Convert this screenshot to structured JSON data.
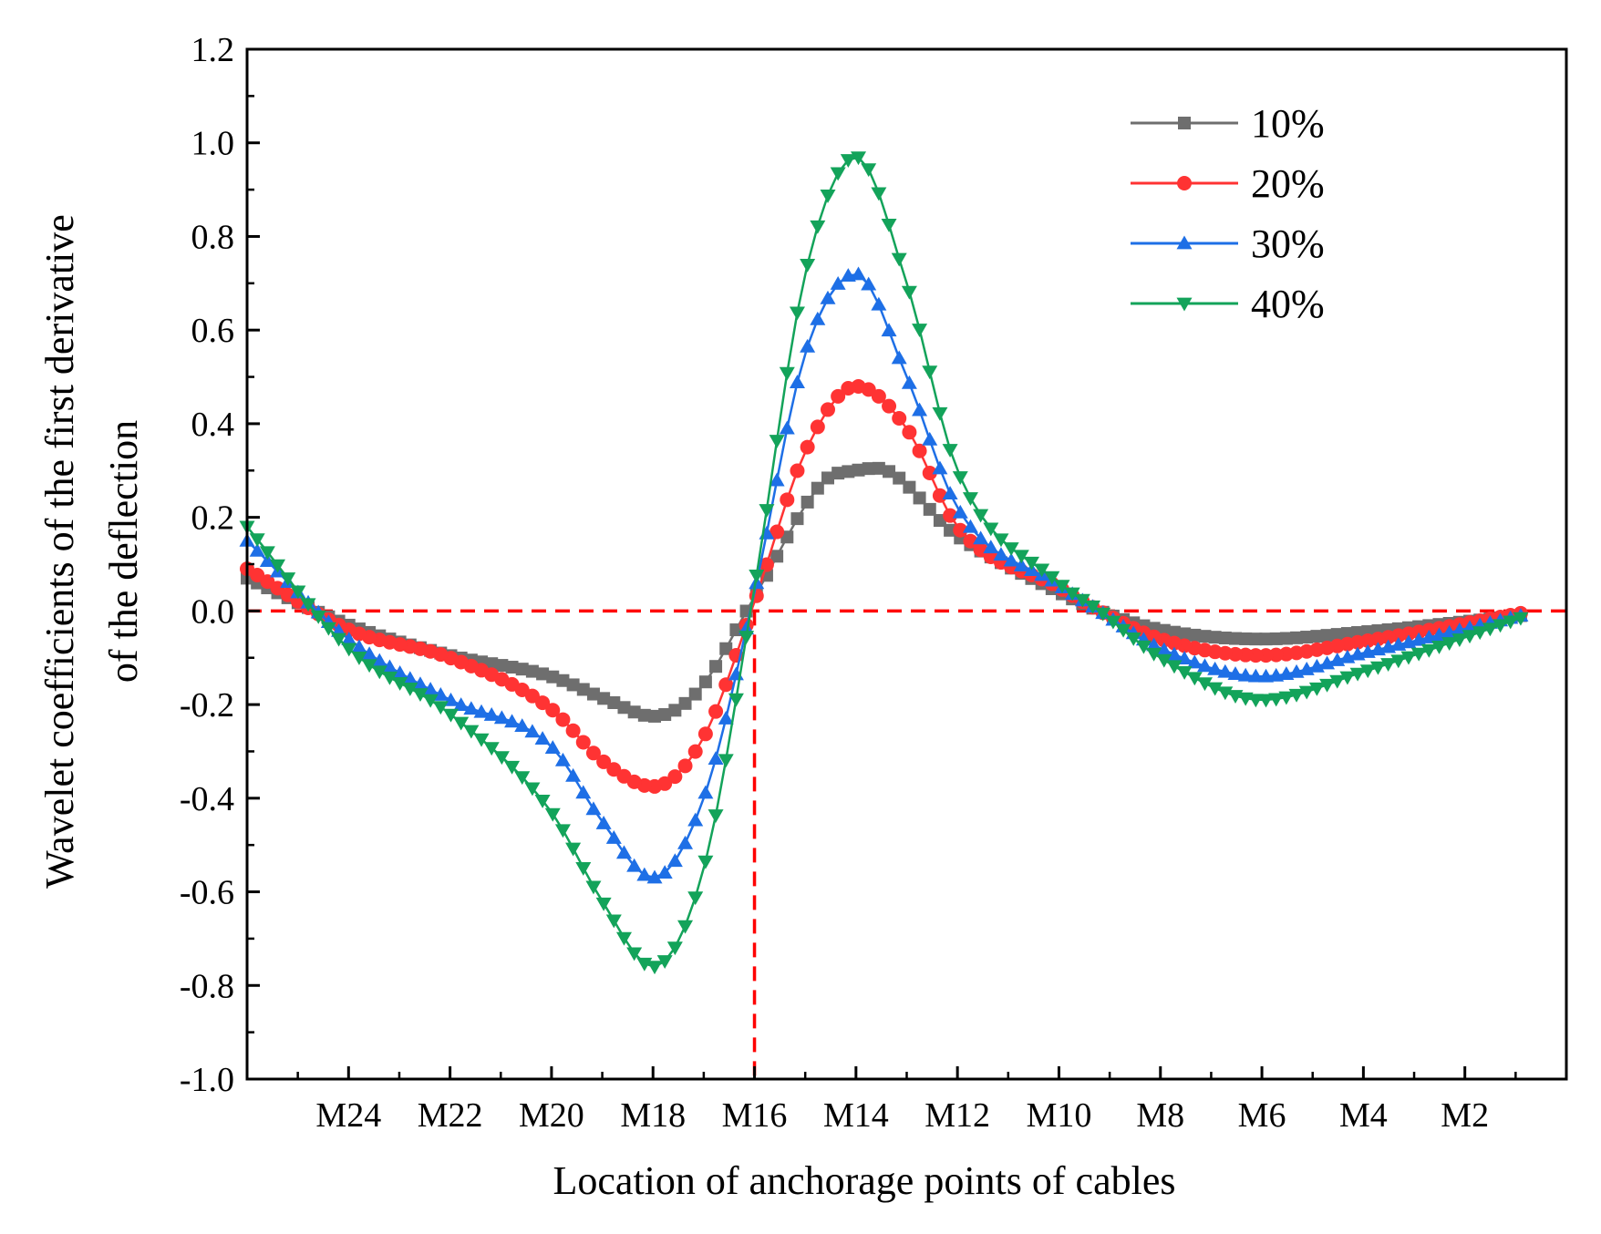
{
  "chart_data": {
    "type": "line",
    "title": "",
    "xlabel": "Location of anchorage points of cables",
    "ylabel_lines": [
      "Wavelet coefficients of the first  derivative",
      "of the deflection"
    ],
    "x_categories": [
      "M24",
      "M22",
      "M20",
      "M18",
      "M16",
      "M14",
      "M12",
      "M10",
      "M8",
      "M6",
      "M4",
      "M2"
    ],
    "x_category_positions": [
      25,
      23,
      21,
      19,
      17,
      15,
      13,
      11,
      9,
      7,
      5,
      3
    ],
    "xlim": [
      27,
      1
    ],
    "ylim": [
      -1.0,
      1.2
    ],
    "y_ticks": [
      "-1.0",
      "-0.8",
      "-0.6",
      "-0.4",
      "-0.2",
      "0.0",
      "0.2",
      "0.4",
      "0.6",
      "0.8",
      "1.0",
      "1.2"
    ],
    "y_tick_values": [
      -1.0,
      -0.8,
      -0.6,
      -0.4,
      -0.2,
      0.0,
      0.2,
      0.4,
      0.6,
      0.8,
      1.0,
      1.2
    ],
    "x_data_range": [
      27,
      1.9
    ],
    "reference_lines": {
      "horizontal_y": 0.0,
      "vertical_x": 17,
      "color": "#ff0000"
    },
    "legend_position": "top-right",
    "series": [
      {
        "name": "10%",
        "color": "#6e6e6e",
        "marker": "square",
        "x": [
          27,
          25,
          23,
          21,
          19.9,
          19,
          18.1,
          17,
          15.6,
          15,
          14.6,
          13,
          11,
          10.2,
          9,
          7,
          5,
          1.9
        ],
        "values": [
          0.07,
          -0.03,
          -0.095,
          -0.14,
          -0.19,
          -0.225,
          -0.17,
          0.03,
          0.28,
          0.3,
          0.305,
          0.16,
          0.04,
          0.0,
          -0.04,
          -0.06,
          -0.045,
          -0.01
        ]
      },
      {
        "name": "20%",
        "color": "#ff3333",
        "marker": "circle",
        "x": [
          27,
          25,
          23,
          21,
          20,
          19,
          18,
          17,
          16,
          15,
          14,
          13,
          11,
          10.2,
          9,
          7,
          5,
          1.9
        ],
        "values": [
          0.09,
          -0.04,
          -0.1,
          -0.21,
          -0.32,
          -0.375,
          -0.27,
          0.02,
          0.34,
          0.48,
          0.39,
          0.18,
          0.05,
          0.0,
          -0.06,
          -0.095,
          -0.065,
          -0.005
        ]
      },
      {
        "name": "30%",
        "color": "#1e6fe6",
        "marker": "triangle-up",
        "x": [
          27,
          25,
          23,
          21,
          20,
          19,
          18,
          17,
          16,
          15,
          14,
          13,
          11,
          10.2,
          9,
          7,
          5,
          1.9
        ],
        "values": [
          0.15,
          -0.06,
          -0.19,
          -0.29,
          -0.45,
          -0.57,
          -0.4,
          0.04,
          0.55,
          0.72,
          0.5,
          0.22,
          0.055,
          0.0,
          -0.08,
          -0.14,
          -0.09,
          -0.01
        ]
      },
      {
        "name": "40%",
        "color": "#13a35a",
        "marker": "triangle-down",
        "x": [
          27,
          25,
          23,
          21,
          20,
          19,
          18,
          17,
          16,
          15,
          14,
          13,
          11,
          10.2,
          9,
          7,
          5,
          1.9
        ],
        "values": [
          0.18,
          -0.08,
          -0.22,
          -0.43,
          -0.62,
          -0.76,
          -0.55,
          0.05,
          0.72,
          0.97,
          0.7,
          0.3,
          0.06,
          0.0,
          -0.1,
          -0.19,
          -0.13,
          -0.015
        ]
      }
    ]
  }
}
